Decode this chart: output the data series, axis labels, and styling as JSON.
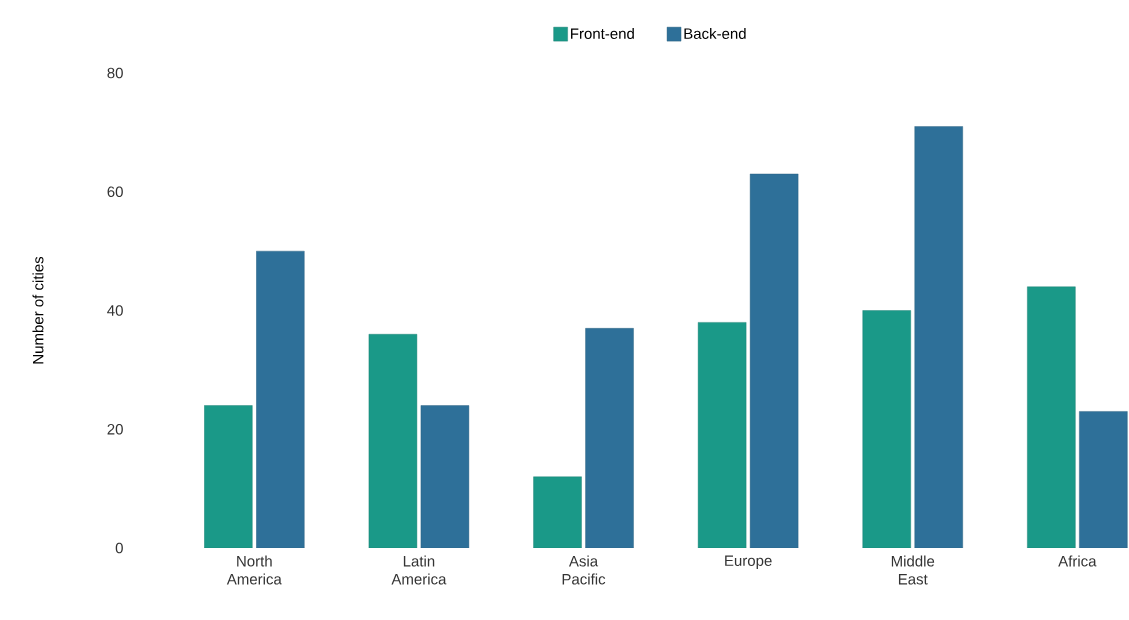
{
  "chart_data": {
    "type": "bar",
    "ylabel": "Number of cities",
    "categories": [
      "North America",
      "Latin America",
      "Asia Pacific",
      "Europe",
      "Middle East",
      "Africa"
    ],
    "series": [
      {
        "name": "Front-end",
        "color": "#1a9988",
        "values": [
          24,
          36,
          12,
          38,
          40,
          44
        ]
      },
      {
        "name": "Back-end",
        "color": "#2e7099",
        "values": [
          50,
          24,
          37,
          63,
          71,
          23
        ]
      }
    ],
    "ylim": [
      0,
      80
    ],
    "yticks": [
      0,
      20,
      40,
      60,
      80
    ],
    "legend": "top"
  }
}
